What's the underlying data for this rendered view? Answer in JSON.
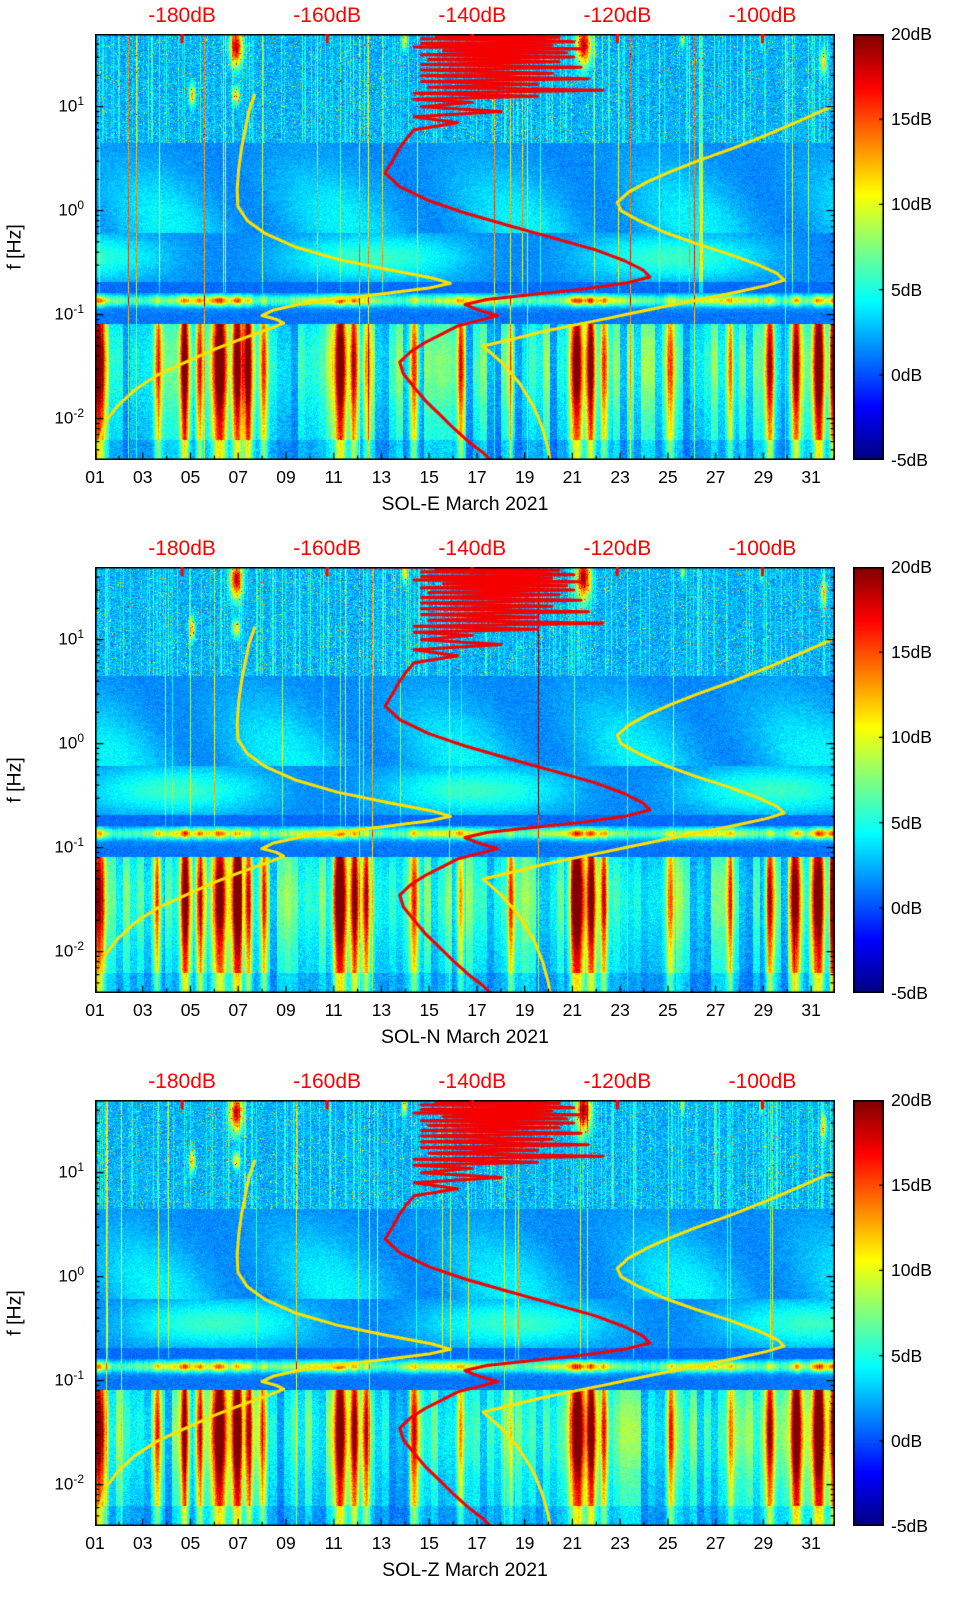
{
  "figure": {
    "background": "#ffffff",
    "colors": {
      "accent_red": "#ff0000",
      "curve_yellow": "#ffe100",
      "observed_red": "#f40000",
      "axis": "#000000"
    }
  },
  "chart_data": {
    "type": "heatmap",
    "description": "Three stacked seismic PSD spectrograms (SOL-E, SOL-N, SOL-Z, March 2021), jet colormap -5dB to 20dB, log frequency axis 0.004-50 Hz, day-of-month x axis. Yellow low/high noise model curves and a red observed median PSD curve are overlaid, referenced to the red dB axis along the top.",
    "x_axis": {
      "tick_labels": [
        "01",
        "03",
        "05",
        "07",
        "09",
        "11",
        "13",
        "15",
        "17",
        "19",
        "21",
        "23",
        "25",
        "27",
        "29",
        "31"
      ],
      "tick_values": [
        1,
        3,
        5,
        7,
        9,
        11,
        13,
        15,
        17,
        19,
        21,
        23,
        25,
        27,
        29,
        31
      ],
      "range_days": [
        1,
        32
      ]
    },
    "y_axis": {
      "label": "f [Hz]",
      "scale": "log",
      "range_hz": [
        0.004,
        50
      ],
      "ticks": [
        {
          "base": "10",
          "exp": "1",
          "value": 10
        },
        {
          "base": "10",
          "exp": "0",
          "value": 1
        },
        {
          "base": "10",
          "exp": "-1",
          "value": 0.1
        },
        {
          "base": "10",
          "exp": "-2",
          "value": 0.01
        }
      ]
    },
    "top_axis": {
      "range_db": [
        -192,
        -90
      ],
      "tick_labels": [
        "-180dB",
        "-160dB",
        "-140dB",
        "-120dB",
        "-100dB"
      ],
      "tick_values": [
        -180,
        -160,
        -140,
        -120,
        -100
      ]
    },
    "colorbar": {
      "range_db": [
        -5,
        20
      ],
      "tick_labels": [
        "20dB",
        "15dB",
        "10dB",
        "5dB",
        "0dB",
        "-5dB"
      ],
      "tick_values": [
        20,
        15,
        10,
        5,
        0,
        -5
      ],
      "colormap": "jet"
    },
    "panels": [
      {
        "id": "SOL-E",
        "xlabel": "SOL-E March 2021",
        "seed": 11
      },
      {
        "id": "SOL-N",
        "xlabel": "SOL-N March 2021",
        "seed": 57
      },
      {
        "id": "SOL-Z",
        "xlabel": "SOL-Z March 2021",
        "seed": 93
      }
    ],
    "curves": {
      "low_noise_model_yellow": [
        [
          13,
          -170
        ],
        [
          9,
          -170.8
        ],
        [
          6,
          -171.3
        ],
        [
          4,
          -171.8
        ],
        [
          2.5,
          -172.2
        ],
        [
          1.6,
          -172.4
        ],
        [
          1.1,
          -172.3
        ],
        [
          0.8,
          -171
        ],
        [
          0.6,
          -168.5
        ],
        [
          0.45,
          -164.5
        ],
        [
          0.34,
          -158.5
        ],
        [
          0.27,
          -151.5
        ],
        [
          0.225,
          -145.5
        ],
        [
          0.2,
          -143
        ],
        [
          0.18,
          -146
        ],
        [
          0.16,
          -152
        ],
        [
          0.14,
          -159
        ],
        [
          0.125,
          -164
        ],
        [
          0.11,
          -167.5
        ],
        [
          0.098,
          -169
        ],
        [
          0.09,
          -167
        ],
        [
          0.083,
          -166
        ],
        [
          0.075,
          -167.5
        ],
        [
          0.065,
          -170
        ],
        [
          0.055,
          -172.8
        ],
        [
          0.045,
          -176
        ],
        [
          0.035,
          -179.5
        ],
        [
          0.026,
          -183.5
        ],
        [
          0.019,
          -186.5
        ],
        [
          0.013,
          -189
        ],
        [
          0.009,
          -190.7
        ],
        [
          0.006,
          -191.4
        ],
        [
          0.0045,
          -191.7
        ]
      ],
      "high_noise_model_yellow": [
        [
          10,
          -90.5
        ],
        [
          7.5,
          -94.5
        ],
        [
          5.5,
          -99
        ],
        [
          4,
          -104
        ],
        [
          3,
          -109
        ],
        [
          2.4,
          -112.5
        ],
        [
          1.9,
          -115.8
        ],
        [
          1.5,
          -118.5
        ],
        [
          1.2,
          -120
        ],
        [
          1.0,
          -119.5
        ],
        [
          0.8,
          -117
        ],
        [
          0.62,
          -113.5
        ],
        [
          0.48,
          -109
        ],
        [
          0.38,
          -104.5
        ],
        [
          0.3,
          -100.5
        ],
        [
          0.25,
          -98
        ],
        [
          0.215,
          -97
        ],
        [
          0.19,
          -99.5
        ],
        [
          0.165,
          -103.5
        ],
        [
          0.14,
          -108.5
        ],
        [
          0.12,
          -113.5
        ],
        [
          0.105,
          -117.5
        ],
        [
          0.09,
          -122
        ],
        [
          0.078,
          -126.5
        ],
        [
          0.068,
          -130.5
        ],
        [
          0.058,
          -134.5
        ],
        [
          0.05,
          -138.5
        ],
        [
          0.035,
          -136
        ],
        [
          0.022,
          -133.5
        ],
        [
          0.013,
          -131.5
        ],
        [
          0.008,
          -130.3
        ],
        [
          0.005,
          -129.5
        ],
        [
          0.004,
          -129.3
        ]
      ],
      "observed_psd_red": [
        [
          50,
          -156
        ],
        [
          49.6,
          -139
        ],
        [
          48,
          -145
        ],
        [
          46.5,
          -128
        ],
        [
          45,
          -147
        ],
        [
          43.5,
          -131
        ],
        [
          42,
          -126
        ],
        [
          40.5,
          -147
        ],
        [
          39,
          -129
        ],
        [
          37.5,
          -148
        ],
        [
          36,
          -125
        ],
        [
          34.5,
          -144
        ],
        [
          33,
          -127
        ],
        [
          31.5,
          -147
        ],
        [
          30,
          -126
        ],
        [
          28.5,
          -146
        ],
        [
          27,
          -128
        ],
        [
          25.5,
          -147
        ],
        [
          24,
          -125
        ],
        [
          22.5,
          -147
        ],
        [
          21,
          -129
        ],
        [
          19.8,
          -147
        ],
        [
          18.6,
          -124
        ],
        [
          17.5,
          -147
        ],
        [
          16.4,
          -131
        ],
        [
          15.4,
          -146
        ],
        [
          14.4,
          -122
        ],
        [
          13.5,
          -148
        ],
        [
          12.6,
          -131
        ],
        [
          11.8,
          -148
        ],
        [
          11,
          -140
        ],
        [
          10,
          -147
        ],
        [
          9,
          -136
        ],
        [
          8,
          -148
        ],
        [
          7,
          -142
        ],
        [
          6,
          -148
        ],
        [
          5,
          -149
        ],
        [
          4,
          -150
        ],
        [
          3,
          -151
        ],
        [
          2.3,
          -152
        ],
        [
          1.7,
          -150
        ],
        [
          1.25,
          -146
        ],
        [
          0.95,
          -141
        ],
        [
          0.72,
          -135
        ],
        [
          0.55,
          -129
        ],
        [
          0.42,
          -123
        ],
        [
          0.33,
          -119
        ],
        [
          0.27,
          -116.5
        ],
        [
          0.23,
          -115.5
        ],
        [
          0.2,
          -119
        ],
        [
          0.175,
          -125
        ],
        [
          0.155,
          -132
        ],
        [
          0.14,
          -138
        ],
        [
          0.125,
          -141
        ],
        [
          0.11,
          -139
        ],
        [
          0.098,
          -136.5
        ],
        [
          0.088,
          -139
        ],
        [
          0.078,
          -142
        ],
        [
          0.066,
          -144
        ],
        [
          0.054,
          -146.5
        ],
        [
          0.044,
          -148.5
        ],
        [
          0.035,
          -150
        ],
        [
          0.027,
          -149.5
        ],
        [
          0.02,
          -148
        ],
        [
          0.015,
          -146.5
        ],
        [
          0.011,
          -144.5
        ],
        [
          0.008,
          -142.5
        ],
        [
          0.006,
          -140.5
        ],
        [
          0.0047,
          -138.5
        ],
        [
          0.004,
          -137.5
        ]
      ]
    },
    "spectrogram_features": {
      "microseism_band_hz": [
        0.1,
        0.17
      ],
      "strong_low_freq_days": [
        {
          "day": 1.15,
          "amp": 15,
          "width": 0.22
        },
        {
          "day": 3.6,
          "amp": 9,
          "width": 0.15
        },
        {
          "day": 4.75,
          "amp": 14,
          "width": 0.18
        },
        {
          "day": 5.35,
          "amp": 11,
          "width": 0.15
        },
        {
          "day": 6.2,
          "amp": 16,
          "width": 0.3
        },
        {
          "day": 6.95,
          "amp": 17,
          "width": 0.22
        },
        {
          "day": 7.4,
          "amp": 13,
          "width": 0.15
        },
        {
          "day": 8.05,
          "amp": 9,
          "width": 0.15
        },
        {
          "day": 11.25,
          "amp": 15,
          "width": 0.25
        },
        {
          "day": 11.85,
          "amp": 13,
          "width": 0.18
        },
        {
          "day": 12.35,
          "amp": 9,
          "width": 0.15
        },
        {
          "day": 14.35,
          "amp": 10,
          "width": 0.18
        },
        {
          "day": 16.3,
          "amp": 8,
          "width": 0.15
        },
        {
          "day": 18.4,
          "amp": 7,
          "width": 0.12
        },
        {
          "day": 21.15,
          "amp": 16,
          "width": 0.28
        },
        {
          "day": 21.75,
          "amp": 14,
          "width": 0.18
        },
        {
          "day": 22.3,
          "amp": 10,
          "width": 0.15
        },
        {
          "day": 25.1,
          "amp": 10,
          "width": 0.18
        },
        {
          "day": 27.6,
          "amp": 7,
          "width": 0.12
        },
        {
          "day": 29.25,
          "amp": 11,
          "width": 0.18
        },
        {
          "day": 30.35,
          "amp": 15,
          "width": 0.22
        },
        {
          "day": 31.3,
          "amp": 16,
          "width": 0.25
        },
        {
          "day": 31.9,
          "amp": 14,
          "width": 0.15
        }
      ],
      "high_freq_red_blobs": [
        {
          "day": 5.05,
          "f": 13,
          "amp": 10,
          "wd": 0.12,
          "wf": 0.1
        },
        {
          "day": 6.9,
          "f": 38,
          "amp": 16,
          "wd": 0.25,
          "wf": 0.18
        },
        {
          "day": 6.9,
          "f": 13,
          "amp": 9,
          "wd": 0.15,
          "wf": 0.08
        },
        {
          "day": 13.95,
          "f": 45,
          "amp": 9,
          "wd": 0.1,
          "wf": 0.1
        },
        {
          "day": 17.6,
          "f": 44,
          "amp": 8,
          "wd": 0.1,
          "wf": 0.1
        },
        {
          "day": 21.45,
          "f": 40,
          "amp": 16,
          "wd": 0.3,
          "wf": 0.2
        },
        {
          "day": 25.6,
          "f": 46,
          "amp": 7,
          "wd": 0.08,
          "wf": 0.08
        },
        {
          "day": 28.9,
          "f": 45,
          "amp": 6,
          "wd": 0.08,
          "wf": 0.08
        },
        {
          "day": 31.5,
          "f": 28,
          "amp": 8,
          "wd": 0.12,
          "wf": 0.12
        }
      ]
    }
  }
}
